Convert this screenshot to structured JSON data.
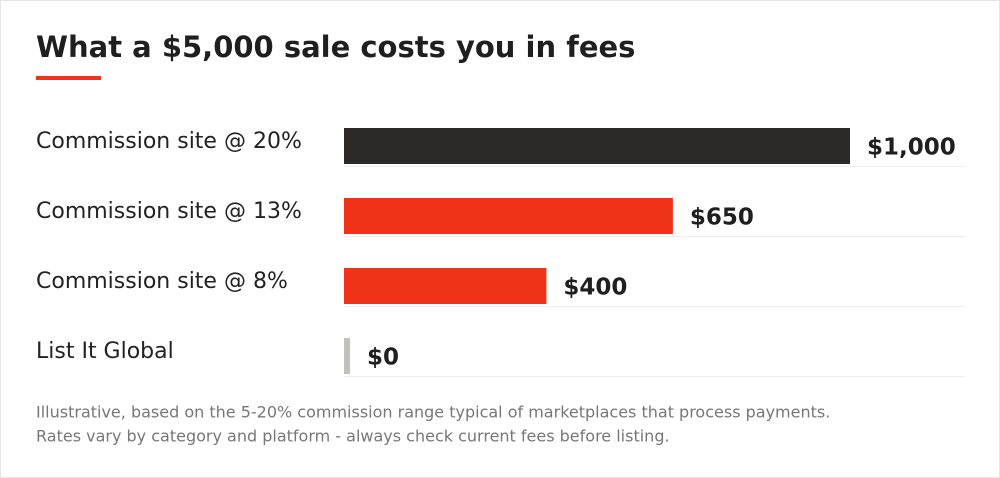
{
  "chart_data": {
    "type": "bar",
    "orientation": "horizontal",
    "title": "What a $5,000 sale costs you in fees",
    "categories": [
      "Commission site @ 20%",
      "Commission site @ 13%",
      "Commission site @ 8%",
      "List It Global"
    ],
    "values": [
      1000,
      650,
      400,
      0
    ],
    "value_labels": [
      "$1,000",
      "$650",
      "$400",
      "$0"
    ],
    "colors": [
      "#2b2a29",
      "#f03218",
      "#f03218",
      "#c4c0bc"
    ],
    "notes": [
      "Illustrative, based on the 5-20% commission range typical of marketplaces that process payments.",
      "Rates vary by category and platform - always check current fees before listing."
    ]
  }
}
